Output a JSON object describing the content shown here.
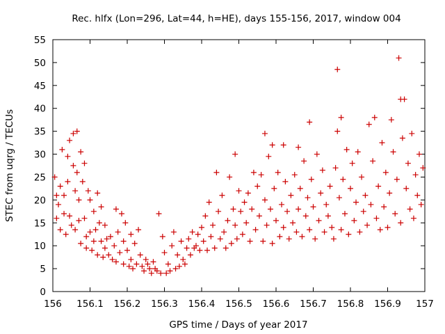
{
  "chart_data": {
    "type": "scatter",
    "title": "Rec. hlfx (Lon=296, Lat=44, h=HE), days 155-156, 2017, window 004",
    "xlabel": "GPS time / Days of year 2017",
    "ylabel": "STEC from uqrg / TECUs",
    "xlim": [
      156,
      157
    ],
    "ylim": [
      0,
      55
    ],
    "x_ticks": [
      "156",
      "156.1",
      "156.2",
      "156.3",
      "156.4",
      "156.5",
      "156.6",
      "156.7",
      "156.8",
      "156.9",
      "157"
    ],
    "y_ticks": [
      "0",
      "5",
      "10",
      "15",
      "20",
      "25",
      "30",
      "35",
      "40",
      "45",
      "50",
      "55"
    ],
    "grid": false,
    "marker": "+",
    "marker_color": "#cc0000",
    "series": [
      {
        "points": [
          [
            156.005,
            25.0
          ],
          [
            156.01,
            16.0
          ],
          [
            156.01,
            21.0
          ],
          [
            156.015,
            19.0
          ],
          [
            156.02,
            23.0
          ],
          [
            156.02,
            13.5
          ],
          [
            156.025,
            31.0
          ],
          [
            156.03,
            21.0
          ],
          [
            156.03,
            17.0
          ],
          [
            156.035,
            12.5
          ],
          [
            156.04,
            24.0
          ],
          [
            156.04,
            29.5
          ],
          [
            156.045,
            33.0
          ],
          [
            156.045,
            16.5
          ],
          [
            156.05,
            14.5
          ],
          [
            156.055,
            27.5
          ],
          [
            156.055,
            34.5
          ],
          [
            156.06,
            22.0
          ],
          [
            156.06,
            13.5
          ],
          [
            156.065,
            26.0
          ],
          [
            156.065,
            35.0
          ],
          [
            156.07,
            20.0
          ],
          [
            156.07,
            15.5
          ],
          [
            156.075,
            30.5
          ],
          [
            156.075,
            10.5
          ],
          [
            156.08,
            24.0
          ],
          [
            156.085,
            28.0
          ],
          [
            156.085,
            16.0
          ],
          [
            156.09,
            12.0
          ],
          [
            156.09,
            9.5
          ],
          [
            156.095,
            22.0
          ],
          [
            156.1,
            20.0
          ],
          [
            156.1,
            13.0
          ],
          [
            156.105,
            9.0
          ],
          [
            156.11,
            17.5
          ],
          [
            156.11,
            11.0
          ],
          [
            156.115,
            13.5
          ],
          [
            156.12,
            21.5
          ],
          [
            156.12,
            8.0
          ],
          [
            156.125,
            15.0
          ],
          [
            156.13,
            11.0
          ],
          [
            156.13,
            18.5
          ],
          [
            156.135,
            7.5
          ],
          [
            156.14,
            14.5
          ],
          [
            156.14,
            9.5
          ],
          [
            156.145,
            11.5
          ],
          [
            156.15,
            8.0
          ],
          [
            156.155,
            12.0
          ],
          [
            156.16,
            7.0
          ],
          [
            156.165,
            10.0
          ],
          [
            156.17,
            18.0
          ],
          [
            156.17,
            6.5
          ],
          [
            156.175,
            13.0
          ],
          [
            156.18,
            8.5
          ],
          [
            156.185,
            17.0
          ],
          [
            156.19,
            6.0
          ],
          [
            156.19,
            11.0
          ],
          [
            156.195,
            15.0
          ],
          [
            156.2,
            9.0
          ],
          [
            156.205,
            5.5
          ],
          [
            156.21,
            12.5
          ],
          [
            156.21,
            7.0
          ],
          [
            156.215,
            5.0
          ],
          [
            156.22,
            10.5
          ],
          [
            156.225,
            6.0
          ],
          [
            156.23,
            13.5
          ],
          [
            156.235,
            8.0
          ],
          [
            156.24,
            5.5
          ],
          [
            156.245,
            4.5
          ],
          [
            156.25,
            7.0
          ],
          [
            156.255,
            6.0
          ],
          [
            156.26,
            5.0
          ],
          [
            156.265,
            4.0
          ],
          [
            156.27,
            6.5
          ],
          [
            156.275,
            5.0
          ],
          [
            156.28,
            4.5
          ],
          [
            156.285,
            17.0
          ],
          [
            156.29,
            4.0
          ],
          [
            156.295,
            12.0
          ],
          [
            156.3,
            8.5
          ],
          [
            156.305,
            4.0
          ],
          [
            156.31,
            6.0
          ],
          [
            156.315,
            4.5
          ],
          [
            156.32,
            10.0
          ],
          [
            156.325,
            13.0
          ],
          [
            156.33,
            5.0
          ],
          [
            156.335,
            8.0
          ],
          [
            156.34,
            5.5
          ],
          [
            156.345,
            11.0
          ],
          [
            156.35,
            7.0
          ],
          [
            156.355,
            6.0
          ],
          [
            156.36,
            9.5
          ],
          [
            156.365,
            11.5
          ],
          [
            156.37,
            8.0
          ],
          [
            156.375,
            13.0
          ],
          [
            156.38,
            9.5
          ],
          [
            156.385,
            10.0
          ],
          [
            156.39,
            12.5
          ],
          [
            156.395,
            9.0
          ],
          [
            156.4,
            14.0
          ],
          [
            156.405,
            11.0
          ],
          [
            156.41,
            16.5
          ],
          [
            156.415,
            9.0
          ],
          [
            156.42,
            19.5
          ],
          [
            156.425,
            12.0
          ],
          [
            156.43,
            14.5
          ],
          [
            156.435,
            9.5
          ],
          [
            156.44,
            26.0
          ],
          [
            156.445,
            17.5
          ],
          [
            156.45,
            11.5
          ],
          [
            156.455,
            21.0
          ],
          [
            156.46,
            13.0
          ],
          [
            156.465,
            9.5
          ],
          [
            156.47,
            15.5
          ],
          [
            156.475,
            25.0
          ],
          [
            156.48,
            10.5
          ],
          [
            156.485,
            18.0
          ],
          [
            156.49,
            30.0
          ],
          [
            156.49,
            14.5
          ],
          [
            156.495,
            11.5
          ],
          [
            156.5,
            22.0
          ],
          [
            156.505,
            17.5
          ],
          [
            156.51,
            12.5
          ],
          [
            156.515,
            19.5
          ],
          [
            156.52,
            15.0
          ],
          [
            156.525,
            21.5
          ],
          [
            156.53,
            11.0
          ],
          [
            156.535,
            18.0
          ],
          [
            156.54,
            26.0
          ],
          [
            156.545,
            13.5
          ],
          [
            156.55,
            23.0
          ],
          [
            156.555,
            16.5
          ],
          [
            156.56,
            25.5
          ],
          [
            156.565,
            11.0
          ],
          [
            156.57,
            34.5
          ],
          [
            156.57,
            20.0
          ],
          [
            156.575,
            14.5
          ],
          [
            156.58,
            29.5
          ],
          [
            156.585,
            18.0
          ],
          [
            156.59,
            32.0
          ],
          [
            156.59,
            10.5
          ],
          [
            156.595,
            22.5
          ],
          [
            156.6,
            15.5
          ],
          [
            156.605,
            26.0
          ],
          [
            156.61,
            12.0
          ],
          [
            156.615,
            19.0
          ],
          [
            156.62,
            32.0
          ],
          [
            156.62,
            14.0
          ],
          [
            156.625,
            24.0
          ],
          [
            156.63,
            17.5
          ],
          [
            156.635,
            11.5
          ],
          [
            156.64,
            21.0
          ],
          [
            156.645,
            15.0
          ],
          [
            156.65,
            25.5
          ],
          [
            156.655,
            13.0
          ],
          [
            156.66,
            31.5
          ],
          [
            156.66,
            18.0
          ],
          [
            156.665,
            22.5
          ],
          [
            156.67,
            12.0
          ],
          [
            156.675,
            28.5
          ],
          [
            156.68,
            16.5
          ],
          [
            156.685,
            20.5
          ],
          [
            156.69,
            37.0
          ],
          [
            156.69,
            13.5
          ],
          [
            156.695,
            24.5
          ],
          [
            156.7,
            18.5
          ],
          [
            156.705,
            11.5
          ],
          [
            156.71,
            30.0
          ],
          [
            156.715,
            15.5
          ],
          [
            156.72,
            21.5
          ],
          [
            156.725,
            26.5
          ],
          [
            156.73,
            13.0
          ],
          [
            156.735,
            19.0
          ],
          [
            156.74,
            16.5
          ],
          [
            156.745,
            23.0
          ],
          [
            156.75,
            14.0
          ],
          [
            156.755,
            11.5
          ],
          [
            156.76,
            27.0
          ],
          [
            156.765,
            48.5
          ],
          [
            156.765,
            35.0
          ],
          [
            156.77,
            20.5
          ],
          [
            156.775,
            38.0
          ],
          [
            156.775,
            13.5
          ],
          [
            156.78,
            24.5
          ],
          [
            156.785,
            17.0
          ],
          [
            156.79,
            31.0
          ],
          [
            156.795,
            12.5
          ],
          [
            156.8,
            22.5
          ],
          [
            156.805,
            28.0
          ],
          [
            156.81,
            15.5
          ],
          [
            156.815,
            19.5
          ],
          [
            156.82,
            30.5
          ],
          [
            156.825,
            13.0
          ],
          [
            156.83,
            25.0
          ],
          [
            156.835,
            17.5
          ],
          [
            156.84,
            21.0
          ],
          [
            156.845,
            14.5
          ],
          [
            156.85,
            36.5
          ],
          [
            156.855,
            19.0
          ],
          [
            156.86,
            28.5
          ],
          [
            156.865,
            38.0
          ],
          [
            156.87,
            16.0
          ],
          [
            156.875,
            23.0
          ],
          [
            156.88,
            13.5
          ],
          [
            156.885,
            32.5
          ],
          [
            156.89,
            18.5
          ],
          [
            156.895,
            26.0
          ],
          [
            156.9,
            14.0
          ],
          [
            156.905,
            21.5
          ],
          [
            156.91,
            37.5
          ],
          [
            156.915,
            30.5
          ],
          [
            156.92,
            17.0
          ],
          [
            156.925,
            24.5
          ],
          [
            156.93,
            51.0
          ],
          [
            156.935,
            42.0
          ],
          [
            156.935,
            15.0
          ],
          [
            156.94,
            33.5
          ],
          [
            156.945,
            42.0
          ],
          [
            156.95,
            22.5
          ],
          [
            156.955,
            28.0
          ],
          [
            156.96,
            18.0
          ],
          [
            156.965,
            34.5
          ],
          [
            156.97,
            16.0
          ],
          [
            156.975,
            25.5
          ],
          [
            156.98,
            21.0
          ],
          [
            156.985,
            30.0
          ],
          [
            156.99,
            19.0
          ],
          [
            156.995,
            27.0
          ]
        ]
      }
    ]
  }
}
